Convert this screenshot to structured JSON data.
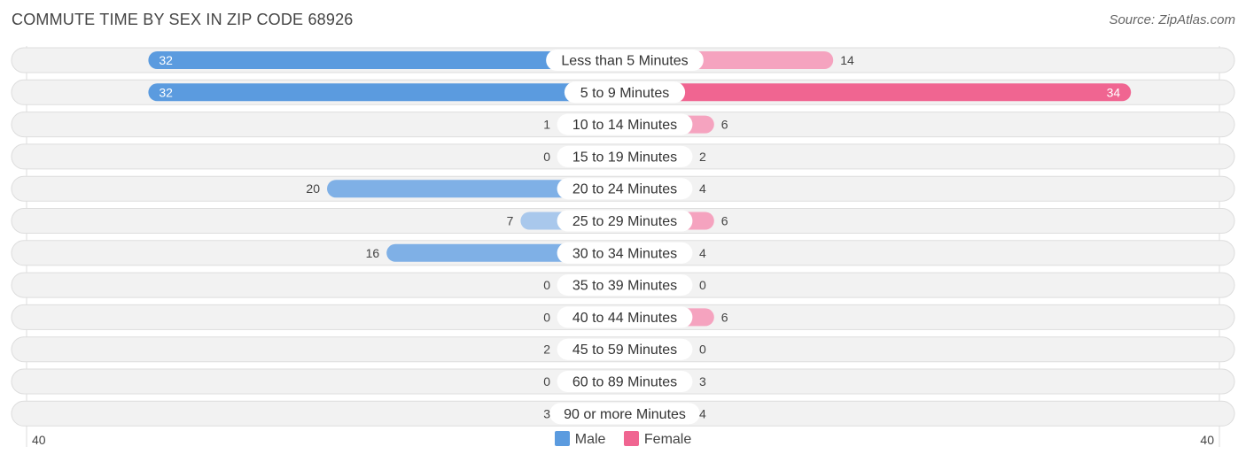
{
  "title": "COMMUTE TIME BY SEX IN ZIP CODE 68926",
  "source": "Source: ZipAtlas.com",
  "colors": {
    "male": "#5b9bdf",
    "male_light": "#a9c8ec",
    "female": "#f06591",
    "female_light": "#f5a3bf",
    "row_bg": "#f2f2f2",
    "row_border": "#dddddd"
  },
  "legend": {
    "male_label": "Male",
    "female_label": "Female"
  },
  "axis": {
    "left_label": "40",
    "right_label": "40"
  },
  "chart_data": {
    "type": "bar",
    "orientation": "horizontal-diverging",
    "categories": [
      "Less than 5 Minutes",
      "5 to 9 Minutes",
      "10 to 14 Minutes",
      "15 to 19 Minutes",
      "20 to 24 Minutes",
      "25 to 29 Minutes",
      "30 to 34 Minutes",
      "35 to 39 Minutes",
      "40 to 44 Minutes",
      "45 to 59 Minutes",
      "60 to 89 Minutes",
      "90 or more Minutes"
    ],
    "series": [
      {
        "name": "Male",
        "values": [
          32,
          32,
          1,
          0,
          20,
          7,
          16,
          0,
          0,
          2,
          0,
          3
        ]
      },
      {
        "name": "Female",
        "values": [
          14,
          34,
          6,
          2,
          4,
          6,
          4,
          0,
          6,
          0,
          3,
          4
        ]
      }
    ],
    "xlim": [
      -40,
      40
    ],
    "legend_position": "bottom-center",
    "grid": false
  }
}
